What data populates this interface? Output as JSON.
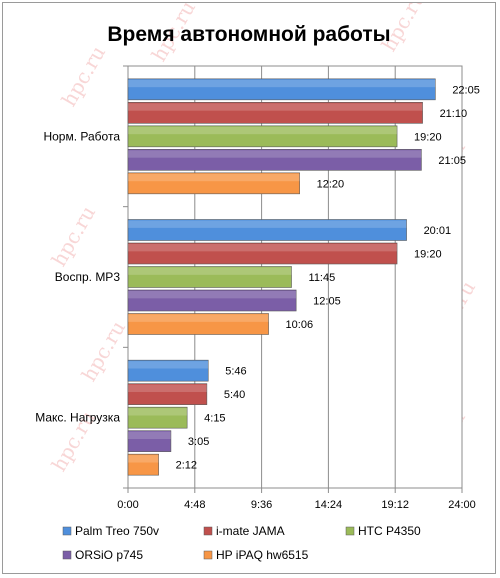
{
  "chart_data": {
    "type": "bar",
    "orientation": "horizontal",
    "title": "Время автономной работы",
    "categories": [
      "Норм. Работа",
      "Воспр. MP3",
      "Макс. Нагрузка"
    ],
    "series": [
      {
        "name": "Palm Treo 750v",
        "color": "#4f8fdc",
        "values": [
          "22:05",
          "20:01",
          "5:46"
        ]
      },
      {
        "name": "i-mate JAMA",
        "color": "#c0504d",
        "values": [
          "21:10",
          "19:20",
          "5:40"
        ]
      },
      {
        "name": "HTC P4350",
        "color": "#9bbb59",
        "values": [
          "19:20",
          "11:45",
          "4:15"
        ]
      },
      {
        "name": "ORSiO p745",
        "color": "#7b5ea7",
        "values": [
          "21:05",
          "12:05",
          "3:05"
        ]
      },
      {
        "name": "HP iPAQ hw6515",
        "color": "#f79646",
        "values": [
          "12:20",
          "10:06",
          "2:12"
        ]
      }
    ],
    "xlim": [
      "0:00",
      "24:00"
    ],
    "xticks": [
      "0:00",
      "4:48",
      "9:36",
      "14:24",
      "19:12",
      "24:00"
    ],
    "grid": true,
    "legend_position": "bottom"
  },
  "watermark": {
    "text": "hpc.ru"
  }
}
